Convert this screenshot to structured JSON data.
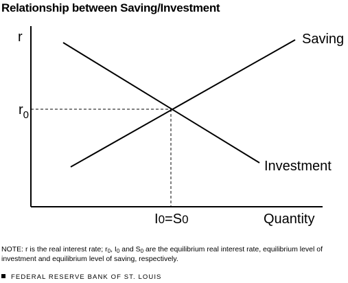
{
  "title": "Relationship between Saving/Investment",
  "diagram": {
    "y_axis_label": "r",
    "x_axis_label": "Quantity",
    "r0_label_main": "r",
    "r0_label_sub": "0",
    "eq_label_i": "I",
    "eq_label_i_sub": "0",
    "eq_label_eq": "=S",
    "eq_label_s_sub": "0",
    "saving_label": "Saving",
    "investment_label": "Investment"
  },
  "note": {
    "p1": "NOTE: r is the real interest rate; r",
    "s1": "0",
    "p2": ", I",
    "s2": "0",
    "p3": " and S",
    "s3": "0",
    "p4": " are the equilibrium real interest rate, equilibrium level of investment and equilibrium level of saving, respectively."
  },
  "footer": "FEDERAL RESERVE BANK OF ST. LOUIS"
}
